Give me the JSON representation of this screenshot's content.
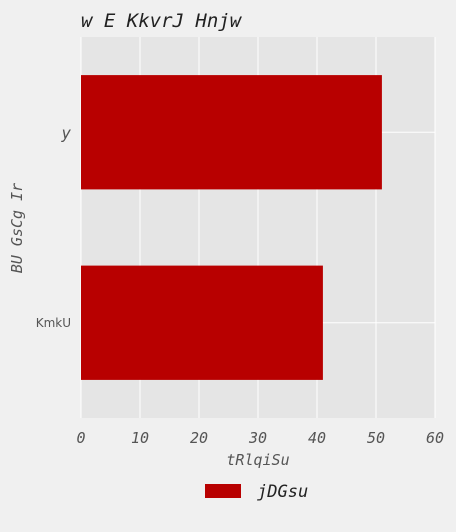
{
  "chart_data": {
    "type": "bar",
    "orientation": "horizontal",
    "title": "w E KkvrJ Hnjw",
    "xlabel": "tRlqiSu",
    "ylabel": "BU GsCg Ir",
    "categories": [
      "y",
      "KmkU"
    ],
    "series": [
      {
        "name": "jDGsu",
        "values": [
          51,
          41
        ],
        "color": "#b80000"
      }
    ],
    "xlim": [
      0,
      60
    ],
    "xticks": [
      0,
      10,
      20,
      30,
      40,
      50,
      60
    ],
    "grid": true,
    "legend_position": "bottom-center",
    "colors": {
      "background": "#f0f0f0",
      "plot_area": "#e5e5e5",
      "grid": "#ffffff"
    }
  }
}
